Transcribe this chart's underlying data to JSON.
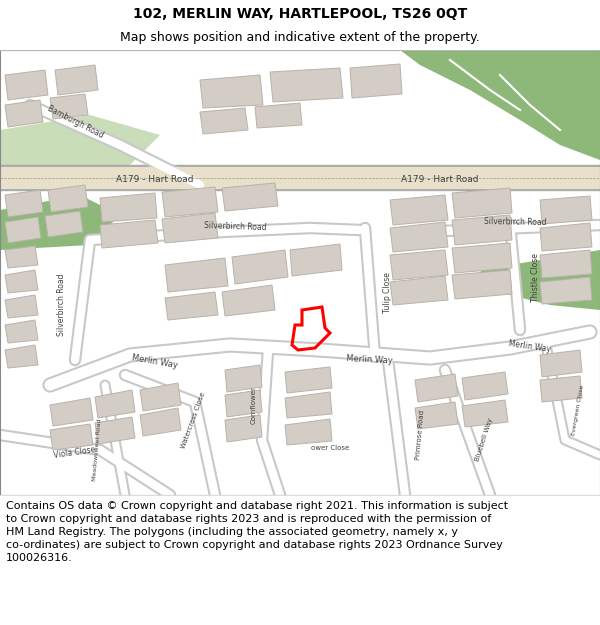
{
  "title": "102, MERLIN WAY, HARTLEPOOL, TS26 0QT",
  "subtitle": "Map shows position and indicative extent of the property.",
  "copyright_text": "Contains OS data © Crown copyright and database right 2021. This information is subject\nto Crown copyright and database rights 2023 and is reproduced with the permission of\nHM Land Registry. The polygons (including the associated geometry, namely x, y\nco-ordinates) are subject to Crown copyright and database rights 2023 Ordnance Survey\n100026316.",
  "bg_color": "#ede9e3",
  "road_color": "#ffffff",
  "road_outline": "#c8c8c8",
  "building_color": "#d3cdc5",
  "building_outline": "#b8b2aa",
  "green_color": "#8db87a",
  "green_light": "#c8ddb8",
  "highlight_color": "#ff0000",
  "road_label_color": "#404040",
  "title_fontsize": 10,
  "subtitle_fontsize": 9,
  "copyright_fontsize": 8,
  "fig_width": 6.0,
  "fig_height": 6.25
}
